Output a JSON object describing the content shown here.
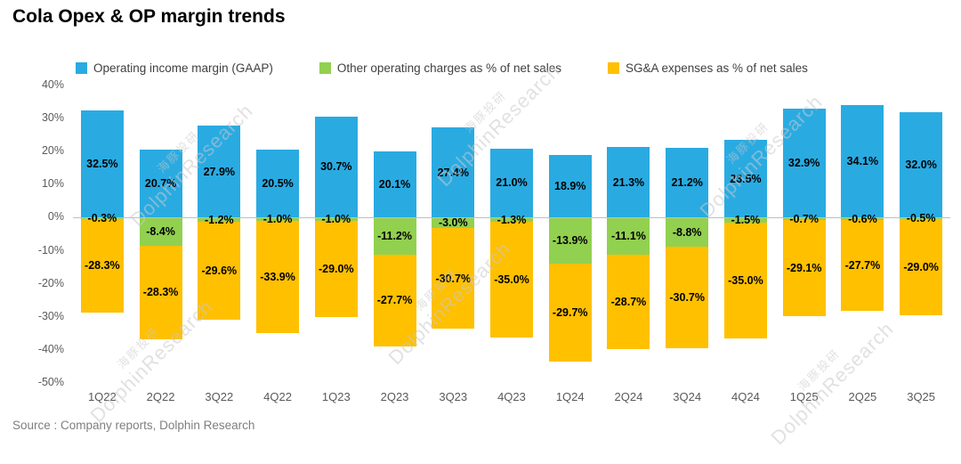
{
  "title": "Cola Opex & OP margin trends",
  "source": "Source : Company reports, Dolphin Research",
  "watermark": {
    "cn": "海豚投研",
    "en": "DolphinResearch"
  },
  "legend": [
    {
      "label": "Operating income margin (GAAP)",
      "color": "#29ABE2"
    },
    {
      "label": "Other operating charges as % of net sales",
      "color": "#92D050"
    },
    {
      "label": "SG&A expenses as % of net sales",
      "color": "#FFC000"
    }
  ],
  "chart_data": {
    "type": "bar",
    "stacked": true,
    "title": "Cola Opex & OP margin trends",
    "categories": [
      "1Q22",
      "2Q22",
      "3Q22",
      "4Q22",
      "1Q23",
      "2Q23",
      "3Q23",
      "4Q23",
      "1Q24",
      "2Q24",
      "3Q24",
      "4Q24",
      "1Q25",
      "2Q25",
      "3Q25"
    ],
    "series": [
      {
        "name": "Operating income margin (GAAP)",
        "color": "#29ABE2",
        "values": [
          32.5,
          20.7,
          27.9,
          20.5,
          30.7,
          20.1,
          27.4,
          21.0,
          18.9,
          21.3,
          21.2,
          23.5,
          32.9,
          34.1,
          32.0
        ]
      },
      {
        "name": "Other operating charges as % of net sales",
        "color": "#92D050",
        "values": [
          -0.3,
          -8.4,
          -1.2,
          -1.0,
          -1.0,
          -11.2,
          -3.0,
          -1.3,
          -13.9,
          -11.1,
          -8.8,
          -1.5,
          -0.7,
          -0.6,
          -0.5
        ]
      },
      {
        "name": "SG&A expenses as % of net sales",
        "color": "#FFC000",
        "values": [
          -28.3,
          -28.3,
          -29.6,
          -33.9,
          -29.0,
          -27.7,
          -30.7,
          -35.0,
          -29.7,
          -28.7,
          -30.7,
          -35.0,
          -29.1,
          -27.7,
          -29.0
        ]
      }
    ],
    "xlabel": "",
    "ylabel": "",
    "ylim": [
      -50,
      40
    ],
    "ytick_step": 10,
    "yticks": [
      "40%",
      "30%",
      "20%",
      "10%",
      "0%",
      "-10%",
      "-20%",
      "-30%",
      "-40%",
      "-50%"
    ],
    "grid": false,
    "legend_position": "top"
  }
}
